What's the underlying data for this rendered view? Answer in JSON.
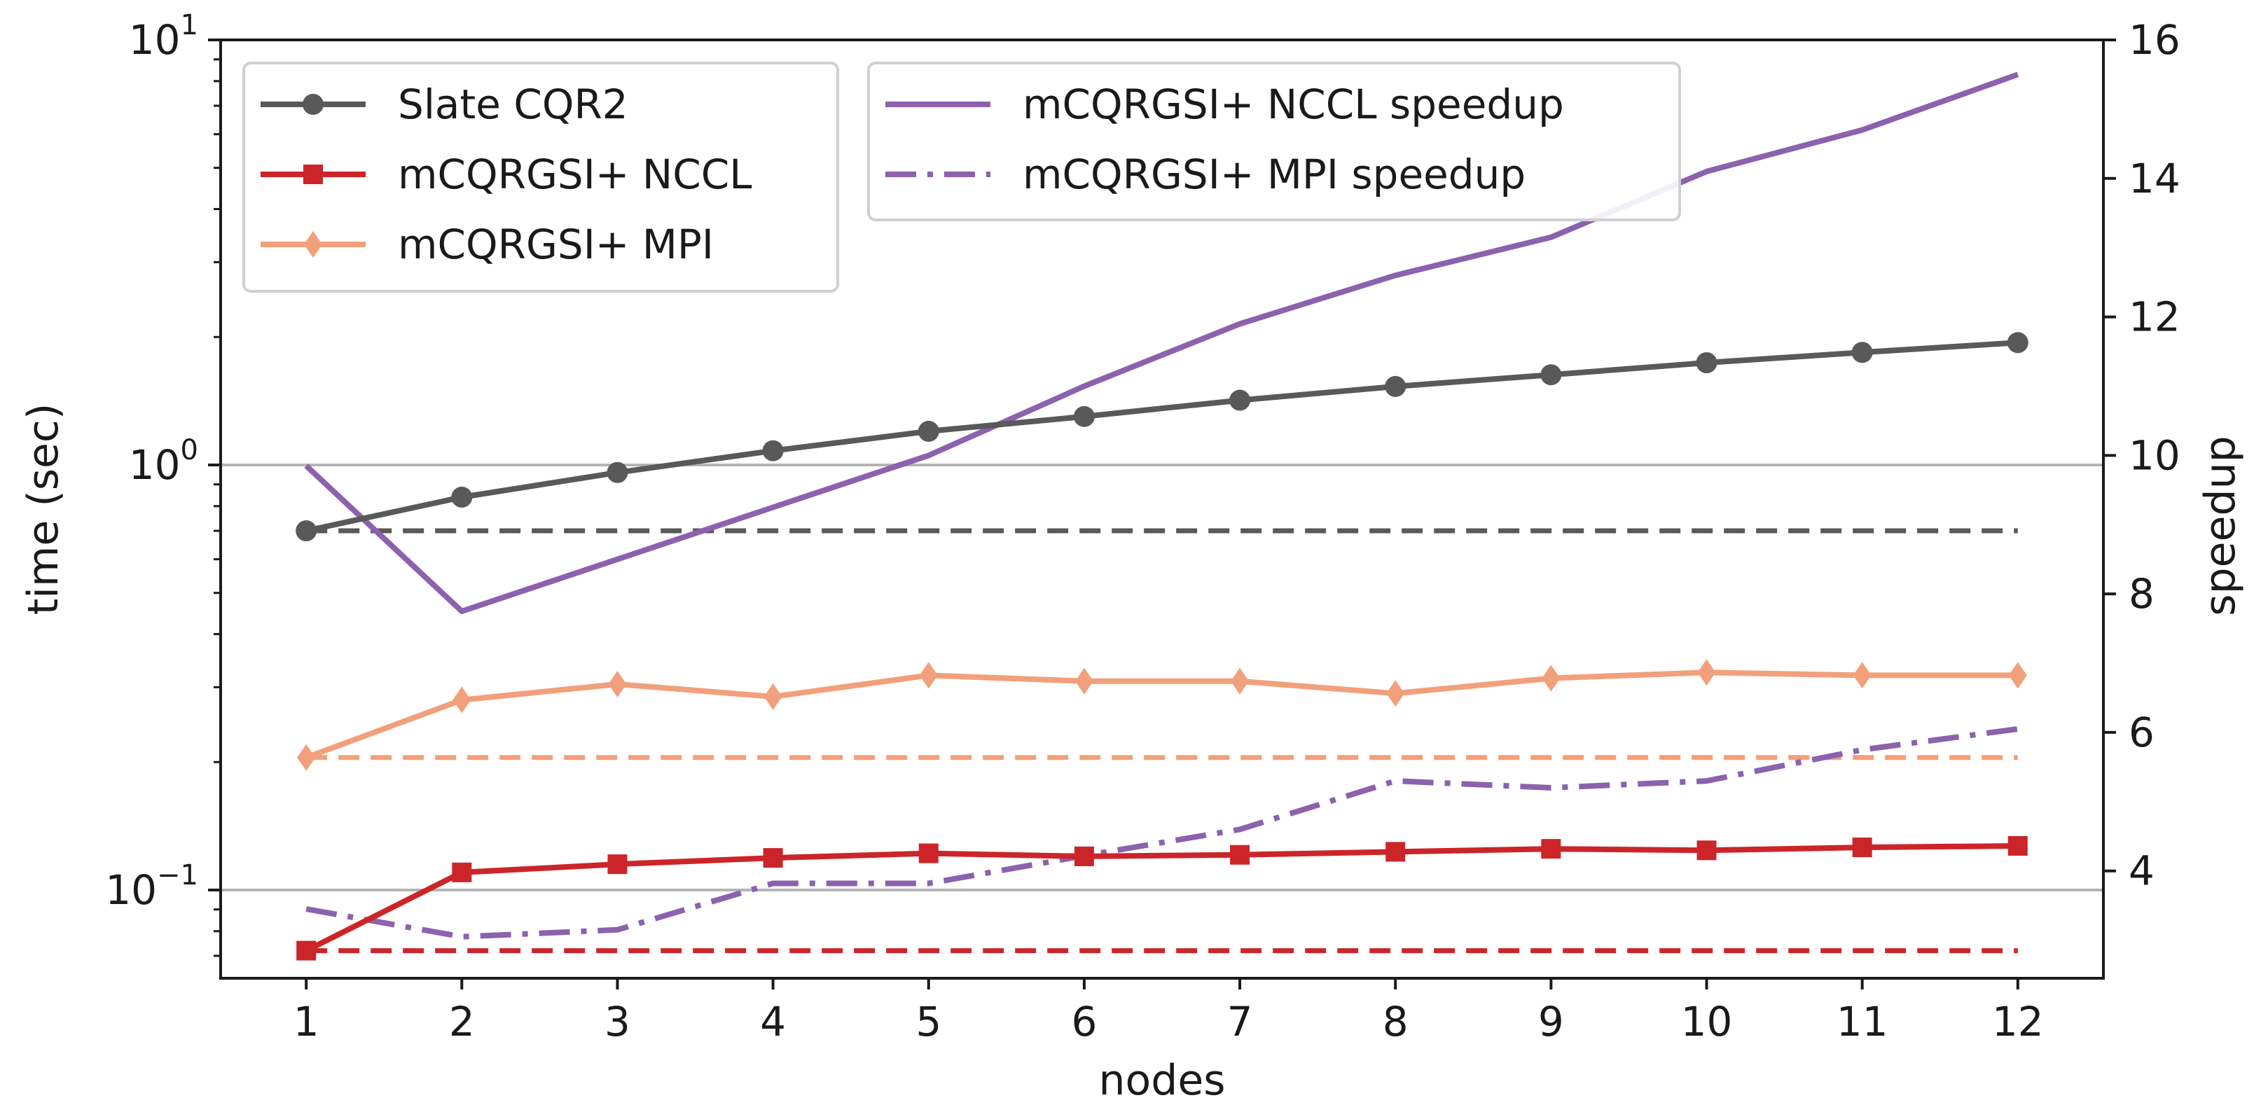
{
  "chart_data": {
    "type": "line",
    "xlabel": "nodes",
    "ylabel": "time (sec)",
    "y2label": "speedup",
    "x": [
      1,
      2,
      3,
      4,
      5,
      6,
      7,
      8,
      9,
      10,
      11,
      12
    ],
    "xlim": [
      0.45,
      12.55
    ],
    "xticks": [
      "1",
      "2",
      "3",
      "4",
      "5",
      "6",
      "7",
      "8",
      "9",
      "10",
      "11",
      "12"
    ],
    "y_scale": "log",
    "ylim": [
      0.062,
      10
    ],
    "yticks": [
      {
        "base": "10",
        "exp": "−1",
        "value": 0.1
      },
      {
        "base": "10",
        "exp": "0",
        "value": 1
      },
      {
        "base": "10",
        "exp": "1",
        "value": 10
      }
    ],
    "y2lim": [
      2.45,
      16
    ],
    "y2ticks": [
      "4",
      "6",
      "8",
      "10",
      "12",
      "14",
      "16"
    ],
    "hgrid_values": [
      0.1,
      1
    ],
    "series": [
      {
        "name": "Slate CQR2",
        "axis": "left",
        "color": "#595959",
        "linestyle": "solid",
        "marker": "circle",
        "values": [
          0.7,
          0.84,
          0.96,
          1.08,
          1.2,
          1.3,
          1.42,
          1.53,
          1.63,
          1.74,
          1.84,
          1.94
        ]
      },
      {
        "name": "mCQRGSI+ NCCL",
        "axis": "left",
        "color": "#cc2529",
        "linestyle": "solid",
        "marker": "square",
        "values": [
          0.072,
          0.11,
          0.115,
          0.119,
          0.122,
          0.12,
          0.121,
          0.123,
          0.125,
          0.124,
          0.126,
          0.127
        ]
      },
      {
        "name": "mCQRGSI+ MPI",
        "axis": "left",
        "color": "#f2a07b",
        "linestyle": "solid",
        "marker": "diamond",
        "values": [
          0.205,
          0.28,
          0.305,
          0.285,
          0.32,
          0.31,
          0.31,
          0.29,
          0.315,
          0.325,
          0.32,
          0.32
        ]
      },
      {
        "name": "mCQRGSI+ NCCL speedup",
        "axis": "right",
        "color": "#8c61ad",
        "linestyle": "solid",
        "marker": "none",
        "values": [
          9.85,
          7.75,
          8.5,
          9.25,
          10.0,
          11.0,
          11.9,
          12.6,
          13.15,
          14.1,
          14.7,
          15.5
        ]
      },
      {
        "name": "mCQRGSI+ MPI speedup",
        "axis": "right",
        "color": "#8c61ad",
        "linestyle": "dashdot",
        "marker": "none",
        "values": [
          3.45,
          3.05,
          3.15,
          3.82,
          3.82,
          4.22,
          4.6,
          5.3,
          5.2,
          5.3,
          5.75,
          6.05
        ]
      }
    ],
    "reference_lines": [
      {
        "color": "#595959",
        "value": 0.7
      },
      {
        "color": "#f2a07b",
        "value": 0.205
      },
      {
        "color": "#cc2529",
        "value": 0.072
      }
    ]
  }
}
